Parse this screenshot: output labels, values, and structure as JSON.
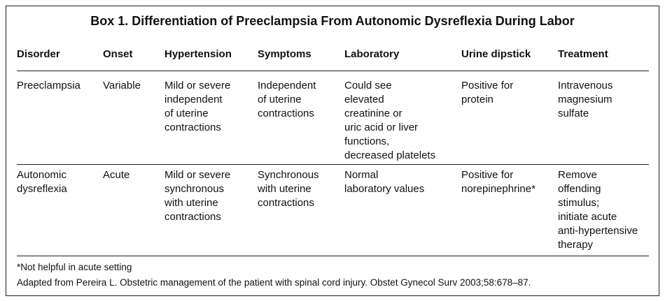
{
  "title": "Box 1. Differentiation of Preeclampsia From Autonomic Dysreflexia During Labor",
  "table": {
    "headers": [
      "Disorder",
      "Onset",
      "Hypertension",
      "Symptoms",
      "Laboratory",
      "Urine dipstick",
      "Treatment"
    ],
    "rows": [
      [
        [
          "Preeclampsia"
        ],
        [
          "Variable"
        ],
        [
          "Mild or severe",
          "independent",
          "of uterine",
          "contractions"
        ],
        [
          "Independent",
          "of uterine",
          "contractions"
        ],
        [
          "Could see",
          "elevated",
          "creatinine or",
          "uric acid or liver",
          "functions,",
          "decreased platelets"
        ],
        [
          "Positive for",
          "protein"
        ],
        [
          "Intravenous",
          "magnesium",
          "sulfate"
        ]
      ],
      [
        [
          "Autonomic",
          "dysreflexia"
        ],
        [
          "Acute"
        ],
        [
          "Mild or severe",
          "synchronous",
          "with uterine",
          "contractions"
        ],
        [
          "Synchronous",
          "with uterine",
          "contractions"
        ],
        [
          "Normal",
          "laboratory values"
        ],
        [
          "Positive for",
          "norepinephrine*"
        ],
        [
          "Remove",
          "offending",
          "stimulus;",
          "initiate acute",
          "anti-hypertensive",
          "therapy"
        ]
      ]
    ]
  },
  "footnotes": [
    "*Not helpful in acute setting",
    "Adapted from Pereira L. Obstetric management of the patient with spinal cord injury. Obstet Gynecol Surv 2003;58:678–87."
  ]
}
